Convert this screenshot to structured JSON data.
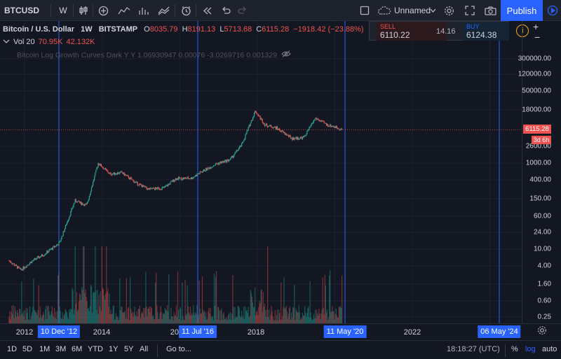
{
  "toolbar": {
    "symbol": "BTCUSD",
    "interval": "W",
    "layout_name": "Unnamed",
    "publish_label": "Publish"
  },
  "legend": {
    "title": "Bitcoin / U.S. Dollar",
    "interval": "1W",
    "exchange": "BITSTAMP",
    "open_label": "O",
    "open": "8035.79",
    "high_label": "H",
    "high": "8191.13",
    "low_label": "L",
    "low": "5713.68",
    "close_label": "C",
    "close": "6115.28",
    "change": "−1918.42 (−23.88%)",
    "vol_label": "Vol 20",
    "vol_value": "70.95K",
    "vol_ma": "42.132K",
    "indicator": "Bitcoin Log Growth Curves Dark Y Y 1.06930947 0.00076 -3.0269716 0.001329"
  },
  "trade": {
    "sell_label": "SELL",
    "sell_price": "6110.22",
    "spread": "14.16",
    "buy_label": "BUY",
    "buy_price": "6124.38"
  },
  "price_scale": {
    "ticks": [
      "300000.00",
      "120000.00",
      "50000.00",
      "18000.00",
      "6115.28",
      "2600.00",
      "1000.00",
      "400.00",
      "150.00",
      "60.00",
      "24.00",
      "10.00",
      "4.00",
      "1.60",
      "0.60",
      "0.25"
    ],
    "last_price": "6115.28",
    "countdown": "3d 6h"
  },
  "time_scale": {
    "ticks": [
      "2012",
      "2014",
      "2016",
      "2018",
      "2020",
      "2022"
    ],
    "markers": [
      "10 Dec '12",
      "11 Jul '16",
      "11 May '20",
      "06 May '24"
    ]
  },
  "bottom": {
    "ranges": [
      "1D",
      "5D",
      "1M",
      "3M",
      "6M",
      "YTD",
      "1Y",
      "5Y",
      "All"
    ],
    "goto_label": "Go to...",
    "clock": "18:18:27 (UTC)",
    "percent_label": "%",
    "log_label": "log",
    "auto_label": "auto"
  },
  "colors": {
    "background": "#131722",
    "up": "#26a69a",
    "down": "#ef5350",
    "accent": "#2962ff",
    "halving_line": "#2962ff"
  },
  "chart_data": {
    "type": "candlestick",
    "scale": "log",
    "series": [
      {
        "name": "Bitcoin / U.S. Dollar",
        "close": [
          [
            2011.6,
            5
          ],
          [
            2011.9,
            3
          ],
          [
            2012.2,
            4.9
          ],
          [
            2012.5,
            7
          ],
          [
            2012.9,
            13
          ],
          [
            2013.3,
            130
          ],
          [
            2013.6,
            100
          ],
          [
            2013.9,
            1000
          ],
          [
            2014.2,
            550
          ],
          [
            2014.5,
            600
          ],
          [
            2014.9,
            330
          ],
          [
            2015.2,
            240
          ],
          [
            2015.6,
            260
          ],
          [
            2015.9,
            430
          ],
          [
            2016.3,
            440
          ],
          [
            2016.6,
            650
          ],
          [
            2016.95,
            960
          ],
          [
            2017.3,
            1200
          ],
          [
            2017.6,
            2700
          ],
          [
            2017.95,
            17000
          ],
          [
            2018.2,
            8000
          ],
          [
            2018.5,
            6700
          ],
          [
            2018.9,
            3800
          ],
          [
            2019.2,
            4000
          ],
          [
            2019.5,
            11500
          ],
          [
            2019.8,
            8000
          ],
          [
            2020.0,
            7200
          ],
          [
            2020.2,
            6115.28
          ]
        ]
      }
    ],
    "volume_unit": "K",
    "halvings": [
      "10 Dec '12",
      "11 Jul '16",
      "11 May '20",
      "06 May '24"
    ]
  }
}
